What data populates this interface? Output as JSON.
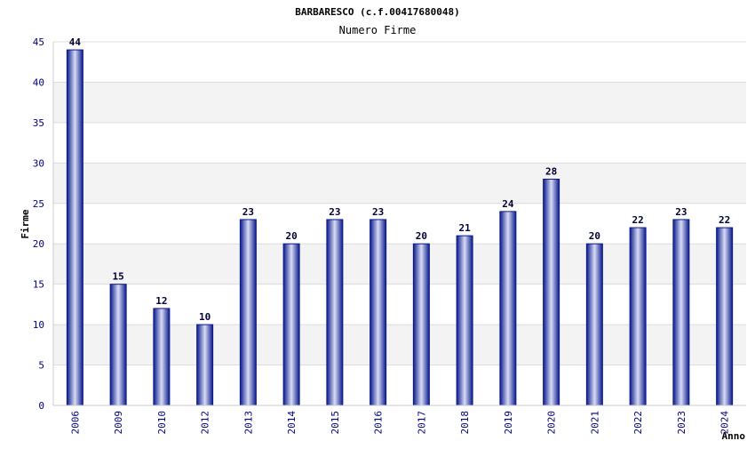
{
  "chart_data": {
    "type": "bar",
    "title": "BARBARESCO (c.f.00417680048)",
    "subtitle": "Numero Firme",
    "xlabel": "Anno",
    "ylabel": "Firme",
    "categories": [
      "2006",
      "2009",
      "2010",
      "2012",
      "2013",
      "2014",
      "2015",
      "2016",
      "2017",
      "2018",
      "2019",
      "2020",
      "2021",
      "2022",
      "2023",
      "2024"
    ],
    "values": [
      44,
      15,
      12,
      10,
      23,
      20,
      23,
      23,
      20,
      21,
      24,
      28,
      20,
      22,
      23,
      22
    ],
    "ylim": [
      0,
      45
    ],
    "yticks": [
      0,
      5,
      10,
      15,
      20,
      25,
      30,
      35,
      40,
      45
    ],
    "grid": true,
    "colors": {
      "bar_edge": "#0a1a8c",
      "bar_mid": "#d8dcf5",
      "axis_text": "#00007f",
      "band": "#f3f3f3",
      "grid": "#dcdcdc"
    }
  }
}
